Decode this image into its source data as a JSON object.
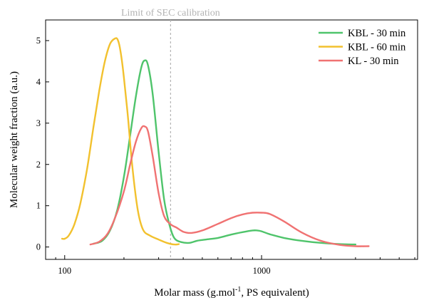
{
  "chart_data": {
    "type": "line",
    "xlabel": {
      "main": "Molar mass (g.mol",
      "sup": "-1",
      "rest": ", PS equivalent)"
    },
    "ylabel": "Molecular weight fraction (a.u.)",
    "xscale": "log",
    "xlim": [
      80,
      6200
    ],
    "ylim": [
      -0.3,
      5.5
    ],
    "xticks": [
      {
        "value": 100,
        "label": "100"
      },
      {
        "value": 1000,
        "label": "1000"
      }
    ],
    "yticks": [
      0,
      1,
      2,
      3,
      4,
      5
    ],
    "grid": false,
    "legend": {
      "position": "top-right"
    },
    "annotations": [
      {
        "text": "Limit of SEC calibration",
        "x": 345,
        "style": "dashed-vertical",
        "color": "#b3b3b3"
      }
    ],
    "series": [
      {
        "name": "KBL - 30 min",
        "color": "#4fc46b",
        "x": [
          140,
          155,
          170,
          185,
          200,
          215,
          230,
          245,
          255,
          265,
          280,
          300,
          320,
          340,
          360,
          390,
          430,
          470,
          520,
          600,
          700,
          800,
          900,
          950,
          1000,
          1100,
          1300,
          1600,
          2000,
          2500,
          3000
        ],
        "y": [
          0.08,
          0.15,
          0.4,
          0.9,
          1.7,
          2.7,
          3.65,
          4.35,
          4.52,
          4.4,
          3.7,
          2.3,
          1.15,
          0.55,
          0.22,
          0.12,
          0.1,
          0.15,
          0.18,
          0.22,
          0.3,
          0.36,
          0.4,
          0.4,
          0.38,
          0.31,
          0.22,
          0.15,
          0.1,
          0.07,
          0.06
        ]
      },
      {
        "name": "KBL - 60 min",
        "color": "#f2c12e",
        "x": [
          97,
          100,
          105,
          112,
          120,
          130,
          140,
          150,
          160,
          170,
          180,
          186,
          192,
          200,
          210,
          220,
          235,
          250,
          270,
          300,
          330,
          360,
          380
        ],
        "y": [
          0.2,
          0.2,
          0.28,
          0.55,
          1.05,
          1.9,
          2.9,
          3.8,
          4.5,
          4.92,
          5.05,
          5.02,
          4.75,
          4.1,
          3.1,
          2.0,
          0.9,
          0.42,
          0.28,
          0.18,
          0.1,
          0.06,
          0.07
        ]
      },
      {
        "name": "KL - 30 min",
        "color": "#f07272",
        "x": [
          135,
          150,
          165,
          180,
          200,
          215,
          230,
          245,
          255,
          265,
          280,
          300,
          320,
          345,
          370,
          400,
          440,
          500,
          600,
          700,
          800,
          900,
          1000,
          1100,
          1300,
          1600,
          2000,
          2500,
          3000,
          3500
        ],
        "y": [
          0.06,
          0.13,
          0.32,
          0.7,
          1.35,
          2.0,
          2.55,
          2.88,
          2.92,
          2.8,
          2.2,
          1.3,
          0.75,
          0.55,
          0.47,
          0.37,
          0.34,
          0.4,
          0.56,
          0.7,
          0.79,
          0.83,
          0.83,
          0.8,
          0.62,
          0.35,
          0.15,
          0.05,
          0.02,
          0.02
        ]
      }
    ]
  }
}
